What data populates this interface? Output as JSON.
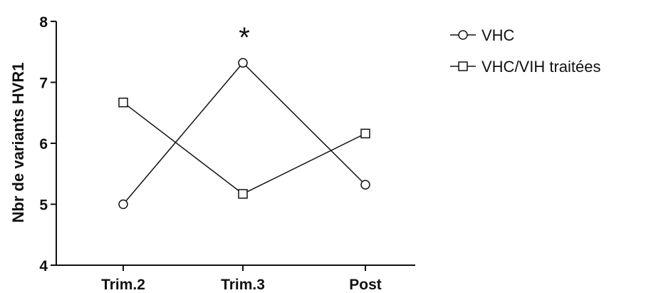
{
  "chart_data": {
    "type": "line",
    "categories": [
      "Trim.2",
      "Trim.3",
      "Post"
    ],
    "ylabel": "Nbr de variants HVR1",
    "ylim": [
      4,
      8
    ],
    "yticks": [
      "4",
      "5",
      "6",
      "7",
      "8"
    ],
    "grid": false,
    "legend_position": "top-right",
    "series": [
      {
        "name": "VHC",
        "marker": "circle",
        "values": [
          5.0,
          7.32,
          5.32
        ]
      },
      {
        "name": "VHC/VIH traitées",
        "marker": "square",
        "values": [
          6.67,
          5.17,
          6.16
        ]
      }
    ],
    "annotations": [
      {
        "text": "*",
        "category": "Trim.3"
      }
    ]
  }
}
